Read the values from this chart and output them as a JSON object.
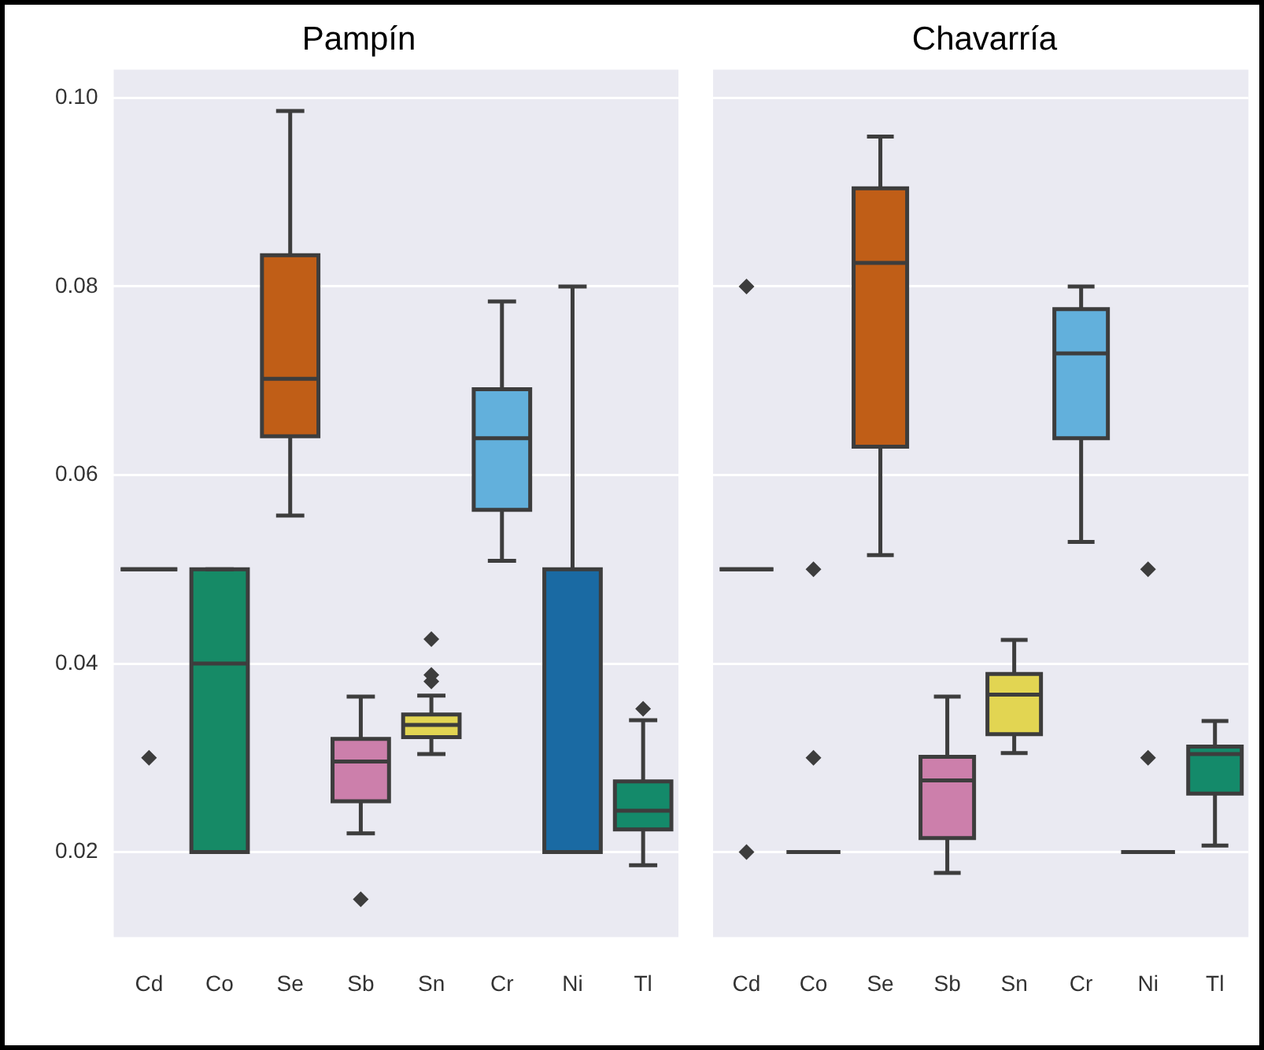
{
  "chart_data": [
    {
      "type": "box",
      "title": "Pampín",
      "categories": [
        "Cd",
        "Co",
        "Se",
        "Sb",
        "Sn",
        "Cr",
        "Ni",
        "Tl"
      ],
      "boxes": [
        {
          "low": 0.05,
          "q1": 0.05,
          "median": 0.05,
          "q3": 0.05,
          "high": 0.05,
          "outliers": [
            0.03
          ]
        },
        {
          "low": 0.02,
          "q1": 0.02,
          "median": 0.04,
          "q3": 0.05,
          "high": 0.05
        },
        {
          "low": 0.0557,
          "q1": 0.0641,
          "median": 0.0702,
          "q3": 0.0833,
          "high": 0.0986
        },
        {
          "low": 0.022,
          "q1": 0.0254,
          "median": 0.0296,
          "q3": 0.032,
          "high": 0.0365,
          "outliers": [
            0.015
          ]
        },
        {
          "low": 0.0304,
          "q1": 0.0322,
          "median": 0.0335,
          "q3": 0.0346,
          "high": 0.0366,
          "outliers": [
            0.0426,
            0.0388,
            0.0381
          ]
        },
        {
          "low": 0.0509,
          "q1": 0.0563,
          "median": 0.0639,
          "q3": 0.0691,
          "high": 0.0784
        },
        {
          "low": 0.02,
          "q1": 0.02,
          "median": 0.02,
          "q3": 0.05,
          "high": 0.08
        },
        {
          "low": 0.0186,
          "q1": 0.0224,
          "median": 0.0244,
          "q3": 0.0275,
          "high": 0.034,
          "outliers": [
            0.0352
          ]
        }
      ],
      "colors": [
        "#3d3d3d",
        "#168a66",
        "#c05e17",
        "#cc7fab",
        "#e2d552",
        "#62b0dc",
        "#1a6aa3",
        "#148a6a"
      ],
      "ylim": [
        0.011,
        0.103
      ],
      "yticks": [
        0.02,
        0.04,
        0.06,
        0.08,
        {
          "value": 0.1,
          "label": "0.10"
        }
      ],
      "grid": "y"
    },
    {
      "type": "box",
      "title": "Chavarría",
      "categories": [
        "Cd",
        "Co",
        "Se",
        "Sb",
        "Sn",
        "Cr",
        "Ni",
        "Tl"
      ],
      "boxes": [
        {
          "low": 0.05,
          "q1": 0.05,
          "median": 0.05,
          "q3": 0.05,
          "high": 0.05,
          "outliers": [
            0.08,
            0.02
          ]
        },
        {
          "low": 0.02,
          "q1": 0.02,
          "median": 0.02,
          "q3": 0.02,
          "high": 0.02,
          "outliers": [
            0.05,
            0.03
          ]
        },
        {
          "low": 0.0515,
          "q1": 0.063,
          "median": 0.0825,
          "q3": 0.0904,
          "high": 0.0959
        },
        {
          "low": 0.0178,
          "q1": 0.0215,
          "median": 0.0276,
          "q3": 0.0301,
          "high": 0.0365
        },
        {
          "low": 0.0305,
          "q1": 0.0325,
          "median": 0.0367,
          "q3": 0.0389,
          "high": 0.0425
        },
        {
          "low": 0.0529,
          "q1": 0.0639,
          "median": 0.0729,
          "q3": 0.0776,
          "high": 0.08
        },
        {
          "low": 0.02,
          "q1": 0.02,
          "median": 0.02,
          "q3": 0.02,
          "high": 0.02,
          "outliers": [
            0.05,
            0.03
          ]
        },
        {
          "low": 0.0207,
          "q1": 0.0262,
          "median": 0.0304,
          "q3": 0.0312,
          "high": 0.0339
        }
      ],
      "colors": [
        "#3d3d3d",
        "#3d3d3d",
        "#c05e17",
        "#cc7fab",
        "#e2d552",
        "#62b0dc",
        "#3d3d3d",
        "#148a6a"
      ],
      "ylim": [
        0.011,
        0.103
      ],
      "yticks": [
        0.02,
        0.04,
        0.06,
        0.08,
        0.1
      ],
      "grid": "y",
      "tick_labels": "x"
    }
  ]
}
